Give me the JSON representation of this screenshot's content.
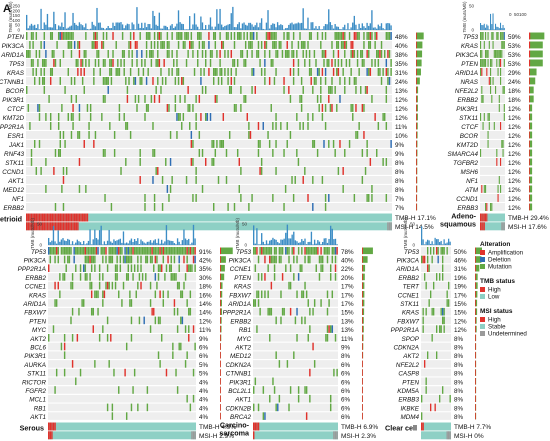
{
  "panel_label": "A",
  "tmb_axis_label": "TMB (muts/Mb)",
  "tmb_ticks": [
    "250",
    "200",
    "150",
    "100",
    "50",
    "0"
  ],
  "tmb_ticks_short": [
    "50",
    "0"
  ],
  "colors": {
    "mutation": "#62A844",
    "amplification": "#E0322C",
    "deletion": "#2E6DB4",
    "tmb_high": "#E0322C",
    "tmb_low": "#8ED0C5",
    "msi_high": "#E0322C",
    "msi_stable": "#8ED0C5",
    "msi_undetermined": "#9A9A9A",
    "pctbar": "#62A844",
    "tmb_bar": "#3C8DC5",
    "bg": "#EEEEEE"
  },
  "legend": {
    "alteration_title": "Alteration",
    "alteration_items": [
      "Amplification",
      "Deletion",
      "Mutation"
    ],
    "tmb_title": "TMB status",
    "tmb_items": [
      "High",
      "Low"
    ],
    "msi_title": "MSI status",
    "msi_items": [
      "High",
      "Stable",
      "Undetermined"
    ]
  },
  "panels": [
    {
      "label": "Endometrioid",
      "tmb": "TMB-H 17.1%",
      "msi": "MSI-H 14.5%",
      "genes": [
        [
          "PTEN",
          "48%"
        ],
        [
          "PIK3CA",
          "40%"
        ],
        [
          "ARID1A",
          "38%"
        ],
        [
          "TP53",
          "35%"
        ],
        [
          "KRAS",
          "31%"
        ],
        [
          "CTNNB1",
          "24%"
        ],
        [
          "BCOR",
          "13%"
        ],
        [
          "PIK3R1",
          "12%"
        ],
        [
          "CTCF",
          "12%"
        ],
        [
          "KMT2D",
          "12%"
        ],
        [
          "PPP2R1A",
          "11%"
        ],
        [
          "ESR1",
          "10%"
        ],
        [
          "JAK1",
          "9%"
        ],
        [
          "RNF43",
          "9%"
        ],
        [
          "STK11",
          "8%"
        ],
        [
          "CCND1",
          "8%"
        ],
        [
          "AKT1",
          "8%"
        ],
        [
          "MED12",
          "8%"
        ],
        [
          "NF1",
          "7%"
        ],
        [
          "ERBB2",
          "7%"
        ]
      ]
    },
    {
      "label": "Adeno-squamous",
      "tmb": "TMB-H 29.4%",
      "msi": "MSI-H 17.6%",
      "genes": [
        [
          "TP53",
          "59%"
        ],
        [
          "KRAS",
          "53%"
        ],
        [
          "PIK3CA",
          "53%"
        ],
        [
          "PTEN",
          "53%"
        ],
        [
          "ARID1A",
          "29%"
        ],
        [
          "NRAS",
          "24%"
        ],
        [
          "NFE2L2",
          "18%"
        ],
        [
          "ERBB2",
          "18%"
        ],
        [
          "PIK3R1",
          "12%"
        ],
        [
          "STK11",
          "12%"
        ],
        [
          "CTCF",
          "12%"
        ],
        [
          "BCOR",
          "12%"
        ],
        [
          "KMT2D",
          "12%"
        ],
        [
          "SMARCA4",
          "12%"
        ],
        [
          "TGFBR2",
          "12%"
        ],
        [
          "MSH6",
          "12%"
        ],
        [
          "NF1",
          "12%"
        ],
        [
          "ATM",
          "12%"
        ],
        [
          "CCND1",
          "12%"
        ],
        [
          "ERBB3",
          "12%"
        ]
      ]
    },
    {
      "label": "Serous",
      "tmb": "TMB-H 4.9%",
      "msi": "MSI-H 2.9%",
      "genes": [
        [
          "TP53",
          "91%"
        ],
        [
          "PIK3CA",
          "42%"
        ],
        [
          "PPP2R1A",
          "35%"
        ],
        [
          "ERBB2",
          "30%"
        ],
        [
          "CCNE1",
          "18%"
        ],
        [
          "KRAS",
          "16%"
        ],
        [
          "ARID1A",
          "14%"
        ],
        [
          "FBXW7",
          "14%"
        ],
        [
          "PTEN",
          "12%"
        ],
        [
          "MYC",
          "11%"
        ],
        [
          "AKT2",
          "9%"
        ],
        [
          "BCL6",
          "6%"
        ],
        [
          "PIK3R1",
          "6%"
        ],
        [
          "AURKA",
          "5%"
        ],
        [
          "STK11",
          "5%"
        ],
        [
          "RICTOR",
          "4%"
        ],
        [
          "FGFR2",
          "4%"
        ],
        [
          "MCL1",
          "4%"
        ],
        [
          "RB1",
          "4%"
        ],
        [
          "AKT1",
          "4%"
        ]
      ]
    },
    {
      "label": "Carcino-sarcoma",
      "tmb": "TMB-H 6.9%",
      "msi": "MSI-H 2.3%",
      "genes": [
        [
          "TP53",
          "78%"
        ],
        [
          "PIK3CA",
          "40%"
        ],
        [
          "CCNE1",
          "22%"
        ],
        [
          "PTEN",
          "20%"
        ],
        [
          "KRAS",
          "17%"
        ],
        [
          "FBXW7",
          "17%"
        ],
        [
          "ARID1A",
          "17%"
        ],
        [
          "PPP2R1A",
          "15%"
        ],
        [
          "ERBB2",
          "13%"
        ],
        [
          "RB1",
          "13%"
        ],
        [
          "MYC",
          "11%"
        ],
        [
          "AKT2",
          "9%"
        ],
        [
          "MED12",
          "8%"
        ],
        [
          "CDKN2A",
          "6%"
        ],
        [
          "CTNNB1",
          "6%"
        ],
        [
          "PIK3R1",
          "6%"
        ],
        [
          "BCL2L1",
          "6%"
        ],
        [
          "AKT1",
          "6%"
        ],
        [
          "CDKN2B",
          "6%"
        ],
        [
          "BRCA2",
          "6%"
        ]
      ]
    },
    {
      "label": "Clear cell",
      "tmb": "TMB-H 7.7%",
      "msi": "MSI-H 0%",
      "genes": [
        [
          "TP53",
          "50%"
        ],
        [
          "PIK3CA",
          "46%"
        ],
        [
          "ARID1A",
          "31%"
        ],
        [
          "ERBB2",
          "19%"
        ],
        [
          "TERT",
          "19%"
        ],
        [
          "CCNE1",
          "17%"
        ],
        [
          "STK11",
          "15%"
        ],
        [
          "KRAS",
          "15%"
        ],
        [
          "FBXW7",
          "12%"
        ],
        [
          "PPP2R1A",
          "12%"
        ],
        [
          "SPOP",
          "8%"
        ],
        [
          "CDKN2A",
          "8%"
        ],
        [
          "AKT2",
          "8%"
        ],
        [
          "NFE2L2",
          "8%"
        ],
        [
          "CASP8",
          "8%"
        ],
        [
          "PTEN",
          "8%"
        ],
        [
          "KDM5A",
          "8%"
        ],
        [
          "ERBB3",
          "8%"
        ],
        [
          "IKBKE",
          "8%"
        ],
        [
          "MDM4",
          "8%"
        ]
      ]
    }
  ]
}
